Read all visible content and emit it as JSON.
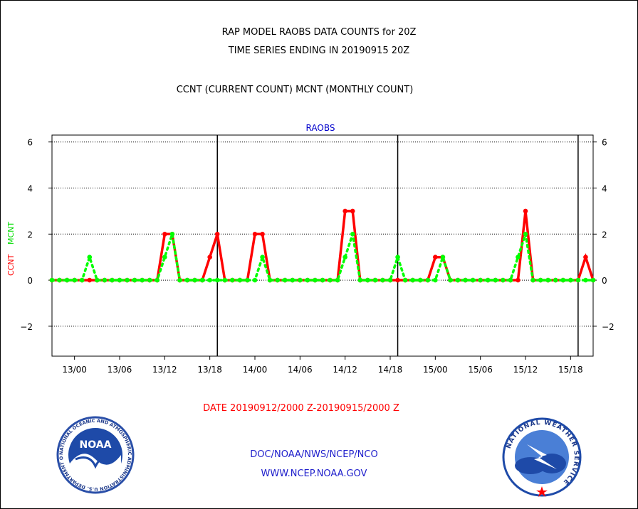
{
  "header": {
    "title_line1": "RAP MODEL RAOBS DATA COUNTS for 20Z",
    "title_line2": "TIME SERIES ENDING IN 20190915 20Z",
    "legend_line": "CCNT (CURRENT COUNT) MCNT (MONTHLY COUNT)"
  },
  "chart_data": {
    "type": "line",
    "title": "RAOBS",
    "ylabel_ccnt": "CCNT",
    "ylabel_mcnt": "MCNT",
    "xlabel": "DATE 20190912/2000 Z-20190915/2000 Z",
    "ylim": [
      -3.3,
      6.3
    ],
    "yticks": [
      -2,
      0,
      2,
      4,
      6
    ],
    "xlim_hours": [
      -3,
      69
    ],
    "x_ticks": [
      {
        "label": "13/00",
        "hour": 0
      },
      {
        "label": "13/06",
        "hour": 6
      },
      {
        "label": "13/12",
        "hour": 12
      },
      {
        "label": "13/18",
        "hour": 18
      },
      {
        "label": "14/00",
        "hour": 24
      },
      {
        "label": "14/06",
        "hour": 30
      },
      {
        "label": "14/12",
        "hour": 36
      },
      {
        "label": "14/18",
        "hour": 42
      },
      {
        "label": "15/00",
        "hour": 48
      },
      {
        "label": "15/06",
        "hour": 54
      },
      {
        "label": "15/12",
        "hour": 60
      },
      {
        "label": "15/18",
        "hour": 66
      }
    ],
    "day_separators_hours": [
      19,
      43,
      67
    ],
    "x_hours": [
      -3,
      -2,
      -1,
      0,
      1,
      2,
      3,
      4,
      5,
      6,
      7,
      8,
      9,
      10,
      11,
      12,
      13,
      14,
      15,
      16,
      17,
      18,
      19,
      20,
      21,
      22,
      23,
      24,
      25,
      26,
      27,
      28,
      29,
      30,
      31,
      32,
      33,
      34,
      35,
      36,
      37,
      38,
      39,
      40,
      41,
      42,
      43,
      44,
      45,
      46,
      47,
      48,
      49,
      50,
      51,
      52,
      53,
      54,
      55,
      56,
      57,
      58,
      59,
      60,
      61,
      62,
      63,
      64,
      65,
      66,
      67,
      68,
      69
    ],
    "series": [
      {
        "name": "CCNT",
        "color": "#ff0000",
        "values": [
          0,
          0,
          0,
          0,
          0,
          0,
          0,
          0,
          0,
          0,
          0,
          0,
          0,
          0,
          0,
          2,
          2,
          0,
          0,
          0,
          0,
          1,
          2,
          0,
          0,
          0,
          0,
          2,
          2,
          0,
          0,
          0,
          0,
          0,
          0,
          0,
          0,
          0,
          0,
          3,
          3,
          0,
          0,
          0,
          0,
          0,
          0,
          0,
          0,
          0,
          0,
          1,
          1,
          0,
          0,
          0,
          0,
          0,
          0,
          0,
          0,
          0,
          0,
          3,
          0,
          0,
          0,
          0,
          0,
          0,
          0,
          1,
          0
        ]
      },
      {
        "name": "MCNT",
        "color": "#00ff00",
        "values": [
          0,
          0,
          0,
          0,
          0,
          1,
          0,
          0,
          0,
          0,
          0,
          0,
          0,
          0,
          0,
          1,
          2,
          0,
          0,
          0,
          0,
          0,
          0,
          0,
          0,
          0,
          0,
          0,
          1,
          0,
          0,
          0,
          0,
          0,
          0,
          0,
          0,
          0,
          0,
          1,
          2,
          0,
          0,
          0,
          0,
          0,
          1,
          0,
          0,
          0,
          0,
          0,
          1,
          0,
          0,
          0,
          0,
          0,
          0,
          0,
          0,
          0,
          1,
          2,
          0,
          0,
          0,
          0,
          0,
          0,
          0,
          0,
          0
        ]
      }
    ]
  },
  "footer": {
    "agency": "DOC/NOAA/NWS/NCEP/NCO",
    "url": "WWW.NCEP.NOAA.GOV"
  },
  "logos": {
    "noaa_text": "NOAA",
    "noaa_ring": "NATIONAL OCEANIC AND ATMOSPHERIC ADMINISTRATION  U.S. DEPARTMENT OF COMMERCE",
    "nws_ring": "NATIONAL WEATHER SERVICE"
  }
}
